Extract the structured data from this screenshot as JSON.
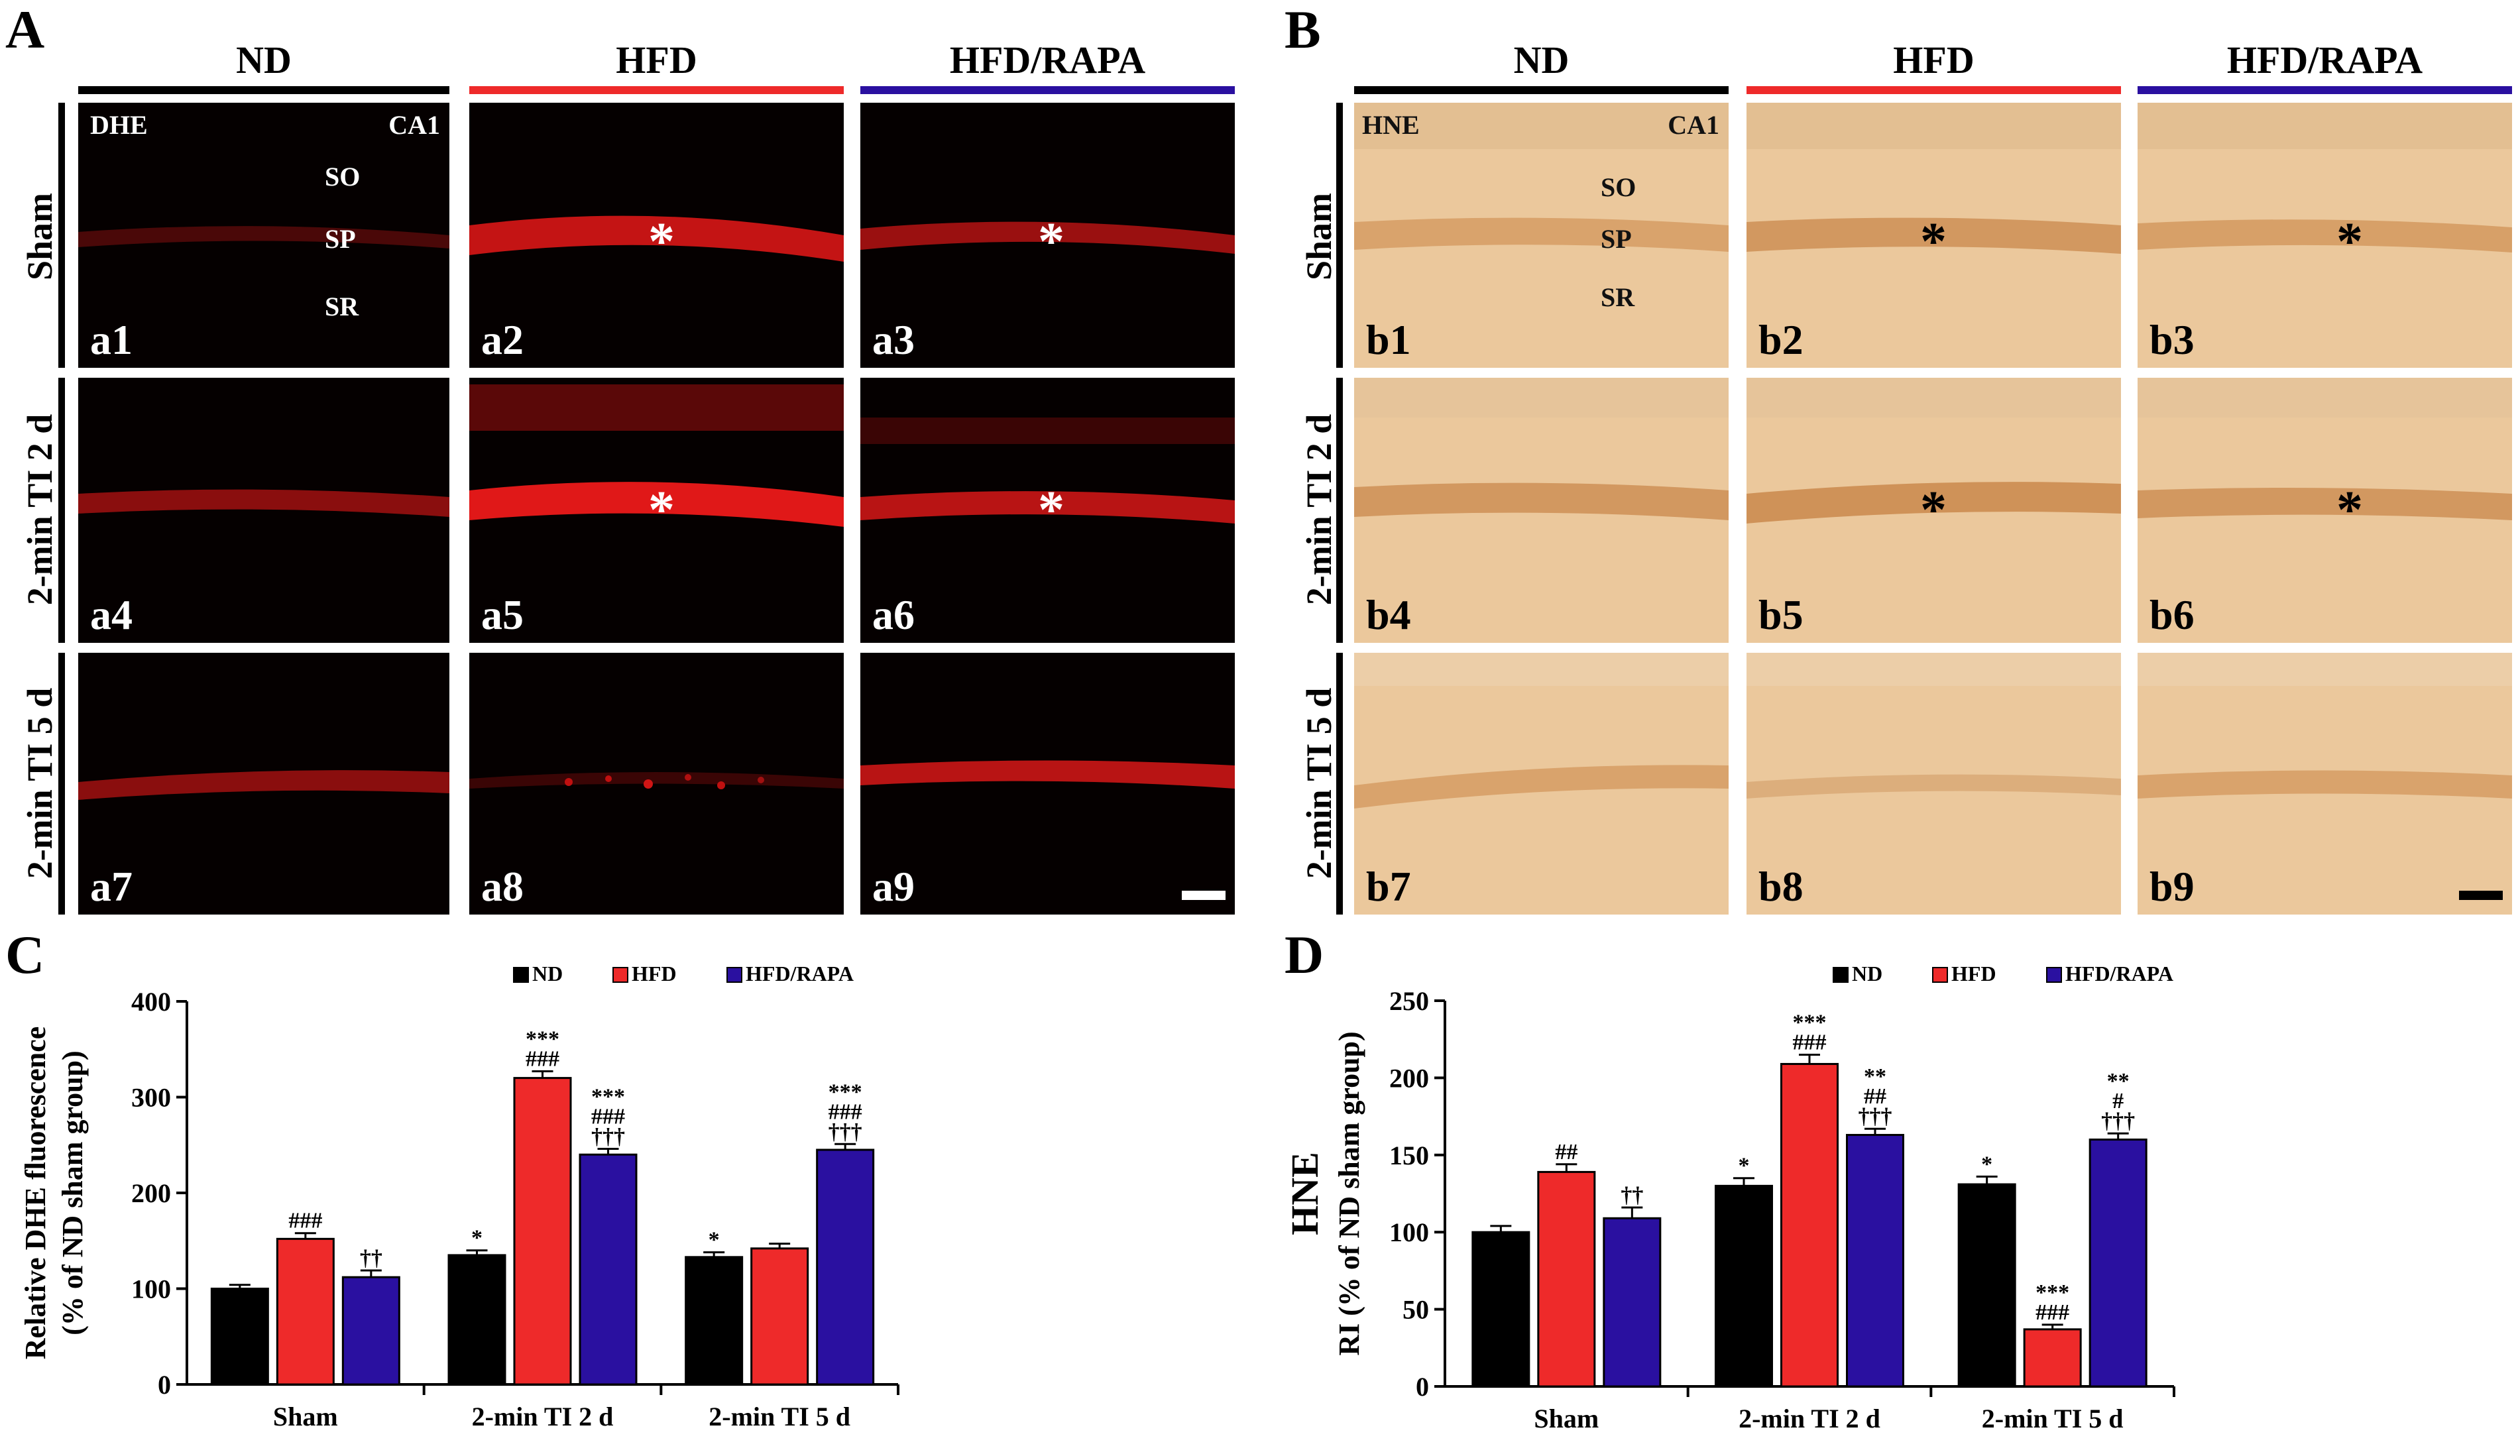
{
  "panels": {
    "A": {
      "letter": "A",
      "columns": [
        "ND",
        "HFD",
        "HFD/RAPA"
      ],
      "rows": [
        "Sham",
        "2-min TI 2 d",
        "2-min TI 5 d"
      ],
      "stain": "DHE",
      "region": "CA1",
      "layers": [
        "SO",
        "SP",
        "SR"
      ],
      "image_labels": [
        "a1",
        "a2",
        "a3",
        "a4",
        "a5",
        "a6",
        "a7",
        "a8",
        "a9"
      ],
      "asterisk": "*"
    },
    "B": {
      "letter": "B",
      "columns": [
        "ND",
        "HFD",
        "HFD/RAPA"
      ],
      "rows": [
        "Sham",
        "2-min TI 2 d",
        "2-min TI 5 d"
      ],
      "stain": "HNE",
      "region": "CA1",
      "layers": [
        "SO",
        "SP",
        "SR"
      ],
      "image_labels": [
        "b1",
        "b2",
        "b3",
        "b4",
        "b5",
        "b6",
        "b7",
        "b8",
        "b9"
      ],
      "asterisk": "*"
    }
  },
  "colors": {
    "ND": "#000000",
    "HFD": "#ee2a2a",
    "HFD/RAPA": "#2a10a0",
    "ihc_bg": "#ebc89c",
    "fluor_bg": "#050000"
  },
  "chart_data": [
    {
      "letter": "C",
      "type": "bar",
      "categories": [
        "Sham",
        "2-min TI 2 d",
        "2-min TI 5 d"
      ],
      "series": [
        {
          "name": "ND",
          "values": [
            100,
            135,
            133
          ],
          "errors": [
            4,
            5,
            5
          ],
          "annotations": [
            "",
            "*",
            "*"
          ]
        },
        {
          "name": "HFD",
          "values": [
            152,
            320,
            142
          ],
          "errors": [
            6,
            7,
            5
          ],
          "annotations": [
            "###",
            "***\n###",
            ""
          ]
        },
        {
          "name": "HFD/RAPA",
          "values": [
            112,
            240,
            245
          ],
          "errors": [
            7,
            6,
            6
          ],
          "annotations": [
            "††",
            "***\n###\n†††",
            "***\n###\n†††"
          ]
        }
      ],
      "ylabel_line1": "Relative DHE fluorescence",
      "ylabel_line2": "(% of ND sham group)",
      "xlabel": "",
      "ylim": [
        0,
        400
      ],
      "yticks": [
        0,
        100,
        200,
        300,
        400
      ],
      "legend": [
        "ND",
        "HFD",
        "HFD/RAPA"
      ],
      "legend_position": "top-right"
    },
    {
      "letter": "D",
      "type": "bar",
      "categories": [
        "Sham",
        "2-min TI 2 d",
        "2-min TI 5 d"
      ],
      "series": [
        {
          "name": "ND",
          "values": [
            100,
            130,
            131
          ],
          "errors": [
            4,
            5,
            5
          ],
          "annotations": [
            "",
            "*",
            "*"
          ]
        },
        {
          "name": "HFD",
          "values": [
            139,
            209,
            37
          ],
          "errors": [
            5,
            6,
            3
          ],
          "annotations": [
            "##",
            "***\n###",
            "***\n###"
          ]
        },
        {
          "name": "HFD/RAPA",
          "values": [
            109,
            163,
            160
          ],
          "errors": [
            7,
            4,
            4
          ],
          "annotations": [
            "††",
            "**\n##\n†††",
            "**\n#\n†††"
          ]
        }
      ],
      "ylabel_line1": "HNE",
      "ylabel_line2": "RI (% of ND sham group)",
      "xlabel": "",
      "ylim": [
        0,
        250
      ],
      "yticks": [
        0,
        50,
        100,
        150,
        200,
        250
      ],
      "legend": [
        "ND",
        "HFD",
        "HFD/RAPA"
      ],
      "legend_position": "top-right"
    }
  ]
}
